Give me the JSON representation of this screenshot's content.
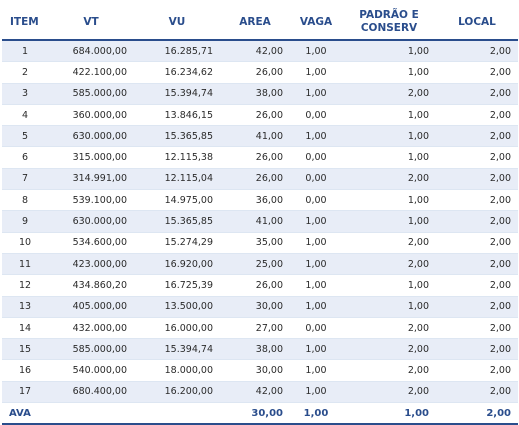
{
  "colors": {
    "header_text": "#2a4d8c",
    "stripe": "#e8edf7",
    "rule": "#2a4d8c"
  },
  "table": {
    "headers": [
      "ITEM",
      "VT",
      "VU",
      "AREA",
      "VAGA",
      "PADRÃO E CONSERV",
      "LOCAL"
    ],
    "rows": [
      [
        "1",
        "684.000,00",
        "16.285,71",
        "42,00",
        "1,00",
        "1,00",
        "2,00"
      ],
      [
        "2",
        "422.100,00",
        "16.234,62",
        "26,00",
        "1,00",
        "1,00",
        "2,00"
      ],
      [
        "3",
        "585.000,00",
        "15.394,74",
        "38,00",
        "1,00",
        "2,00",
        "2,00"
      ],
      [
        "4",
        "360.000,00",
        "13.846,15",
        "26,00",
        "0,00",
        "1,00",
        "2,00"
      ],
      [
        "5",
        "630.000,00",
        "15.365,85",
        "41,00",
        "1,00",
        "1,00",
        "2,00"
      ],
      [
        "6",
        "315.000,00",
        "12.115,38",
        "26,00",
        "0,00",
        "1,00",
        "2,00"
      ],
      [
        "7",
        "314.991,00",
        "12.115,04",
        "26,00",
        "0,00",
        "2,00",
        "2,00"
      ],
      [
        "8",
        "539.100,00",
        "14.975,00",
        "36,00",
        "0,00",
        "1,00",
        "2,00"
      ],
      [
        "9",
        "630.000,00",
        "15.365,85",
        "41,00",
        "1,00",
        "1,00",
        "2,00"
      ],
      [
        "10",
        "534.600,00",
        "15.274,29",
        "35,00",
        "1,00",
        "2,00",
        "2,00"
      ],
      [
        "11",
        "423.000,00",
        "16.920,00",
        "25,00",
        "1,00",
        "2,00",
        "2,00"
      ],
      [
        "12",
        "434.860,20",
        "16.725,39",
        "26,00",
        "1,00",
        "1,00",
        "2,00"
      ],
      [
        "13",
        "405.000,00",
        "13.500,00",
        "30,00",
        "1,00",
        "1,00",
        "2,00"
      ],
      [
        "14",
        "432.000,00",
        "16.000,00",
        "27,00",
        "0,00",
        "2,00",
        "2,00"
      ],
      [
        "15",
        "585.000,00",
        "15.394,74",
        "38,00",
        "1,00",
        "2,00",
        "2,00"
      ],
      [
        "16",
        "540.000,00",
        "18.000,00",
        "30,00",
        "1,00",
        "2,00",
        "2,00"
      ],
      [
        "17",
        "680.400,00",
        "16.200,00",
        "42,00",
        "1,00",
        "2,00",
        "2,00"
      ]
    ],
    "footer": [
      "AVA",
      "",
      "",
      "30,00",
      "1,00",
      "1,00",
      "2,00"
    ]
  }
}
